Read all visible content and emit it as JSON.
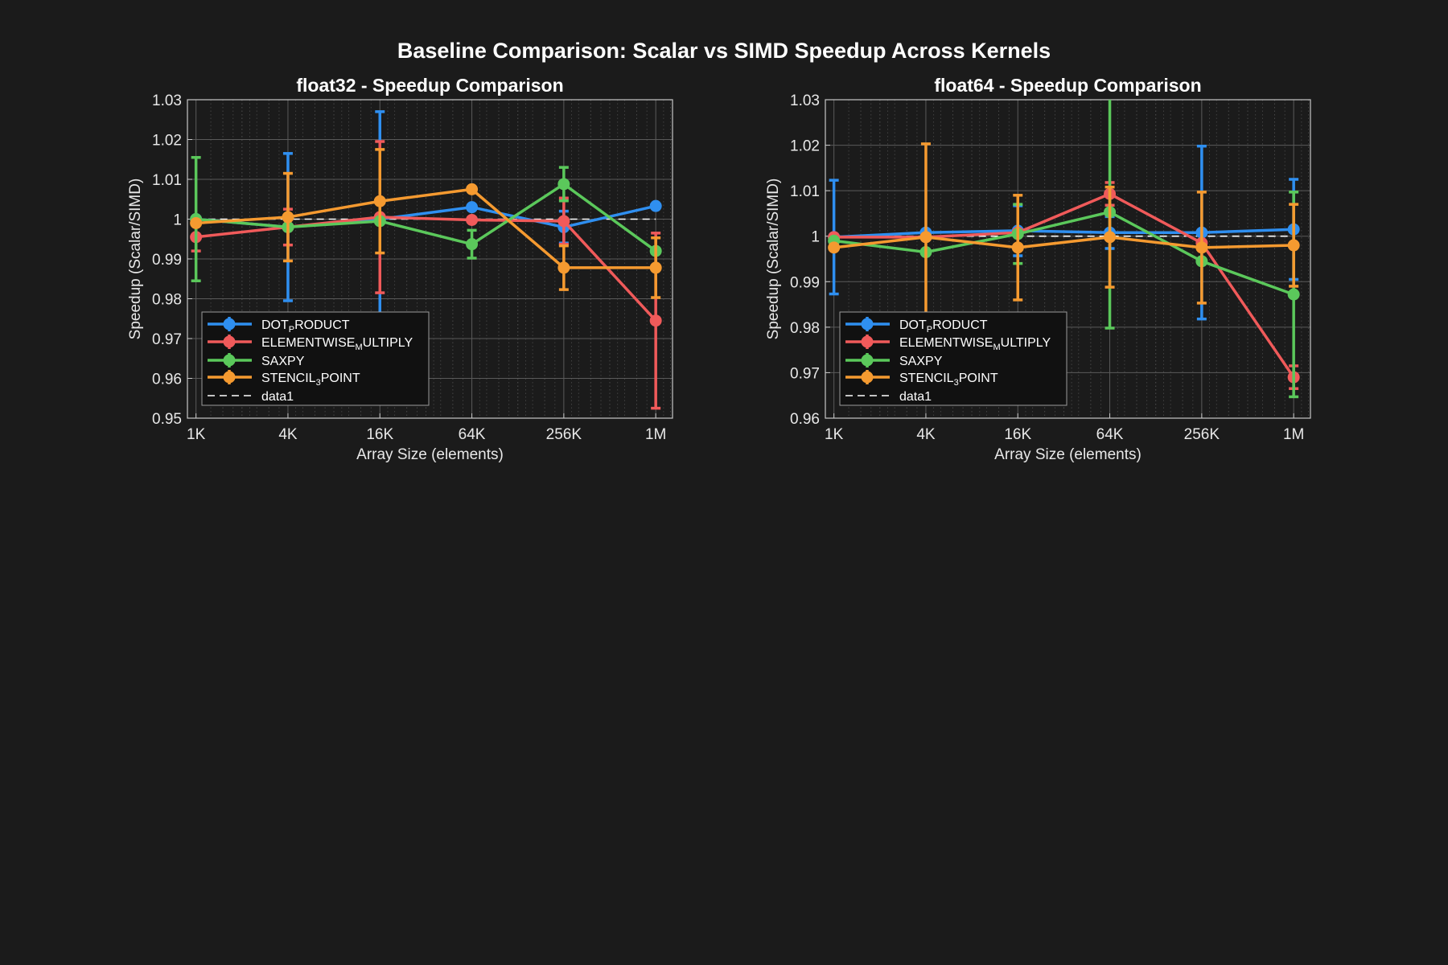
{
  "figure": {
    "title": "Baseline Comparison: Scalar vs SIMD Speedup Across Kernels",
    "background": "#1b1b1b",
    "axes_background": "#1b1b1b",
    "axes_color": "#c8c8c8",
    "grid_color": "#5a5a5a",
    "legend_background": "#111111",
    "legend_border": "#9a9a9a"
  },
  "chart_data": [
    {
      "type": "line",
      "title": "float32 - Speedup Comparison",
      "xlabel": "Array Size (elements)",
      "ylabel": "Speedup (Scalar/SIMD)",
      "x_scale": "log2",
      "categories": [
        "1K",
        "4K",
        "16K",
        "64K",
        "256K",
        "1M"
      ],
      "x": [
        1024,
        4096,
        16384,
        65536,
        262144,
        1048576
      ],
      "xlim": [
        900,
        1350000
      ],
      "ylim": [
        0.95,
        1.03
      ],
      "yticks": [
        0.95,
        0.96,
        0.97,
        0.98,
        0.99,
        1,
        1.01,
        1.02,
        1.03
      ],
      "ytick_labels": [
        "0.95",
        "0.96",
        "0.97",
        "0.98",
        "0.99",
        "1",
        "1.01",
        "1.02",
        "1.03"
      ],
      "grid": true,
      "minor_grid": true,
      "legend_position": "bottom-left",
      "series": [
        {
          "name": "DOT",
          "sub": "P",
          "rest": "RODUCT",
          "color": "#2f8ff0",
          "values": [
            1.0,
            0.998,
            1.0,
            1.003,
            0.998,
            1.0033
          ],
          "err": [
            0.0,
            0.0185,
            0.027,
            0.0,
            0.004,
            0.0
          ]
        },
        {
          "name": "ELEMENTWISE",
          "sub": "M",
          "rest": "ULTIPLY",
          "color": "#f05a5a",
          "values": [
            0.9955,
            0.998,
            1.0005,
            0.9998,
            0.9995,
            0.9745
          ],
          "err": [
            0.0035,
            0.0045,
            0.019,
            0.0,
            0.0058,
            0.022
          ]
        },
        {
          "name": "SAXPY",
          "sub": "",
          "rest": "",
          "color": "#5bc85b",
          "values": [
            1.0,
            0.998,
            0.9995,
            0.9937,
            1.0088,
            0.992
          ],
          "err": [
            0.0155,
            0.0,
            0.0,
            0.0035,
            0.0042,
            0.0
          ]
        },
        {
          "name": "STENCIL",
          "sub": "3",
          "rest": "POINT",
          "color": "#f59a30",
          "values": [
            0.999,
            1.0005,
            1.0045,
            1.0075,
            0.9878,
            0.9878
          ],
          "err": [
            0.0,
            0.011,
            0.013,
            0.0,
            0.0055,
            0.0075
          ]
        },
        {
          "name": "data1",
          "sub": "",
          "rest": "",
          "color": "#ffffff",
          "dashed": true,
          "values": [
            1,
            1,
            1,
            1,
            1,
            1
          ]
        }
      ]
    },
    {
      "type": "line",
      "title": "float64 - Speedup Comparison",
      "xlabel": "Array Size (elements)",
      "ylabel": "Speedup (Scalar/SIMD)",
      "x_scale": "log2",
      "categories": [
        "1K",
        "4K",
        "16K",
        "64K",
        "256K",
        "1M"
      ],
      "x": [
        1024,
        4096,
        16384,
        65536,
        262144,
        1048576
      ],
      "xlim": [
        900,
        1350000
      ],
      "ylim": [
        0.96,
        1.03
      ],
      "yticks": [
        0.96,
        0.97,
        0.98,
        0.99,
        1,
        1.01,
        1.02,
        1.03
      ],
      "ytick_labels": [
        "0.96",
        "0.97",
        "0.98",
        "0.99",
        "1",
        "1.01",
        "1.02",
        "1.03"
      ],
      "grid": true,
      "minor_grid": true,
      "legend_position": "bottom-left",
      "series": [
        {
          "name": "DOT",
          "sub": "P",
          "rest": "RODUCT",
          "color": "#2f8ff0",
          "values": [
            0.9998,
            1.0008,
            1.0012,
            1.0008,
            1.0008,
            1.0015
          ],
          "err": [
            0.0125,
            0.0,
            0.0055,
            0.0035,
            0.019,
            0.011
          ]
        },
        {
          "name": "ELEMENTWISE",
          "sub": "M",
          "rest": "ULTIPLY",
          "color": "#f05a5a",
          "values": [
            0.9998,
            0.9998,
            1.0008,
            1.0093,
            0.9985,
            0.969
          ],
          "err": [
            0.0,
            0.0,
            0.0,
            0.0025,
            0.0,
            0.0025
          ]
        },
        {
          "name": "SAXPY",
          "sub": "",
          "rest": "",
          "color": "#5bc85b",
          "values": [
            0.999,
            0.9965,
            1.0005,
            1.0053,
            0.9945,
            0.9872
          ],
          "err": [
            0.0,
            0.0,
            0.0065,
            0.0255,
            0.0,
            0.0225
          ]
        },
        {
          "name": "STENCIL",
          "sub": "3",
          "rest": "POINT",
          "color": "#f59a30",
          "values": [
            0.9975,
            0.9998,
            0.9975,
            0.9998,
            0.9975,
            0.998
          ],
          "err": [
            0.0,
            0.0205,
            0.0115,
            0.011,
            0.0122,
            0.009
          ]
        },
        {
          "name": "data1",
          "sub": "",
          "rest": "",
          "color": "#ffffff",
          "dashed": true,
          "values": [
            1,
            1,
            1,
            1,
            1,
            1
          ]
        }
      ]
    }
  ]
}
